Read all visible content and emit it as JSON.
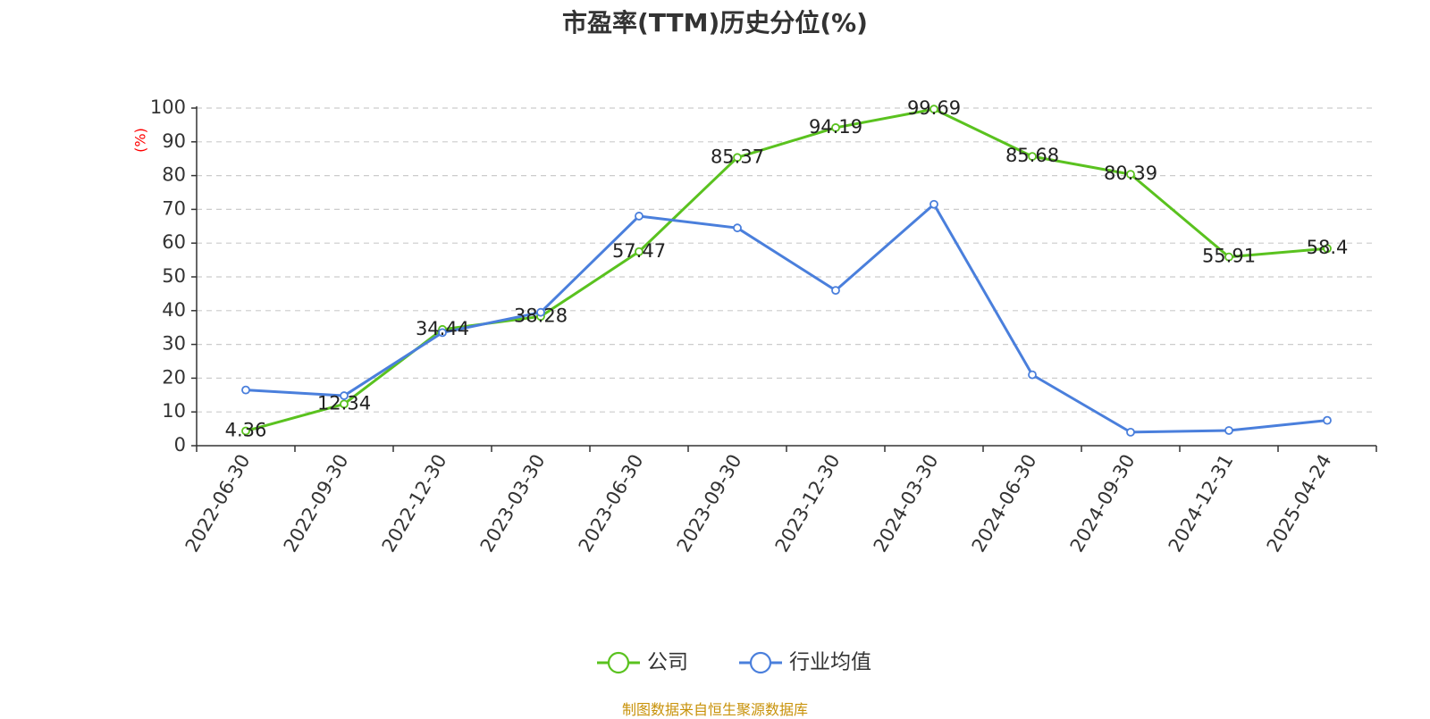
{
  "chart_data": {
    "type": "line",
    "title": "市盈率(TTM)历史分位(%)",
    "ylabel": "(%)",
    "ylim": [
      0,
      100
    ],
    "yticks": [
      0,
      10,
      20,
      30,
      40,
      50,
      60,
      70,
      80,
      90,
      100
    ],
    "grid": true,
    "legend_position": "bottom",
    "categories": [
      "2022-06-30",
      "2022-09-30",
      "2022-12-30",
      "2023-03-30",
      "2023-06-30",
      "2023-09-30",
      "2023-12-30",
      "2024-03-30",
      "2024-06-30",
      "2024-09-30",
      "2024-12-31",
      "2025-04-24"
    ],
    "series": [
      {
        "name": "公司",
        "color": "#5ac21f",
        "values": [
          4.36,
          12.34,
          34.44,
          38.28,
          57.47,
          85.37,
          94.19,
          99.69,
          85.68,
          80.39,
          55.91,
          58.4
        ],
        "labels": [
          "4.36",
          "12.34",
          "34.44",
          "38.28",
          "57.47",
          "85.37",
          "94.19",
          "99.69",
          "85.68",
          "80.39",
          "55.91",
          "58.4"
        ]
      },
      {
        "name": "行业均值",
        "color": "#4a7fdc",
        "values": [
          16.5,
          14.8,
          33.5,
          39.5,
          68.0,
          64.5,
          46.0,
          71.5,
          21.0,
          4.0,
          4.5,
          7.5
        ]
      }
    ]
  },
  "source_text": "制图数据来自恒生聚源数据库",
  "colors": {
    "axis": "#333333",
    "grid": "#cccccc",
    "ylabel": "#ff0000",
    "source": "#c8920a",
    "title": "#333333"
  }
}
